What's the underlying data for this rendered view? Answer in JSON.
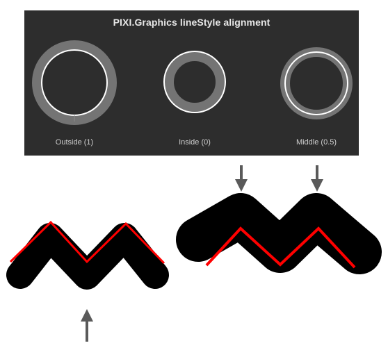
{
  "panel": {
    "title": "PIXI.Graphics lineStyle alignment",
    "captions": {
      "outside": "Outside (1)",
      "inside": "Inside (0)",
      "middle": "Middle (0.5)"
    }
  },
  "colors": {
    "panel_background": "#2d2d2d",
    "ring_fill": "#747474",
    "ring_outline": "#ffffff",
    "zigzag_stroke": "#000000",
    "zigzag_path": "#ff0000",
    "arrow": "#5a5a5a"
  },
  "icons": {
    "down_arrow": "down-arrow-icon",
    "up_arrow": "up-arrow-icon"
  }
}
